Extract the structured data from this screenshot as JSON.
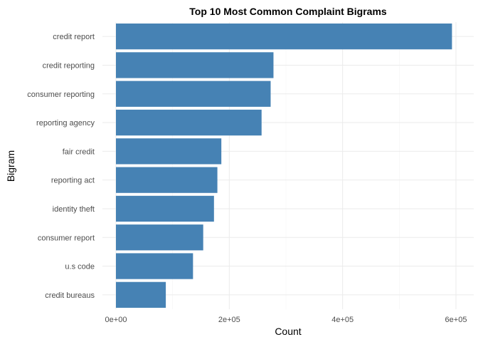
{
  "chart_data": {
    "type": "bar",
    "orientation": "horizontal",
    "title": "Top 10 Most Common Complaint Bigrams",
    "xlabel": "Count",
    "ylabel": "Bigram",
    "categories": [
      "credit report",
      "credit reporting",
      "consumer reporting",
      "reporting agency",
      "fair credit",
      "reporting act",
      "identity theft",
      "consumer report",
      "u.s code",
      "credit bureaus"
    ],
    "values": [
      593000,
      278000,
      273000,
      257000,
      186000,
      179000,
      173000,
      154000,
      136000,
      88000
    ],
    "xlim": [
      0,
      600000
    ],
    "x_ticks": [
      0,
      200000,
      400000,
      600000
    ],
    "x_tick_labels": [
      "0e+00",
      "2e+05",
      "4e+05",
      "6e+05"
    ],
    "bar_color": "#4682B4",
    "grid": true,
    "legend": "none"
  }
}
